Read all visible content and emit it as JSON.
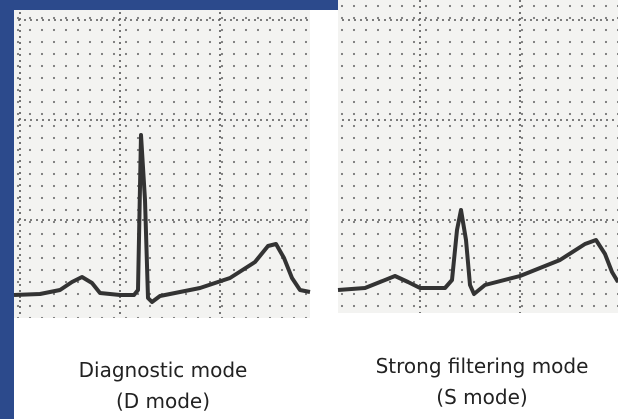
{
  "panels": [
    {
      "caption": [
        "Diagnostic mode",
        "(D mode)"
      ]
    },
    {
      "caption": [
        "Strong filtering mode",
        "(S mode)"
      ]
    }
  ]
}
